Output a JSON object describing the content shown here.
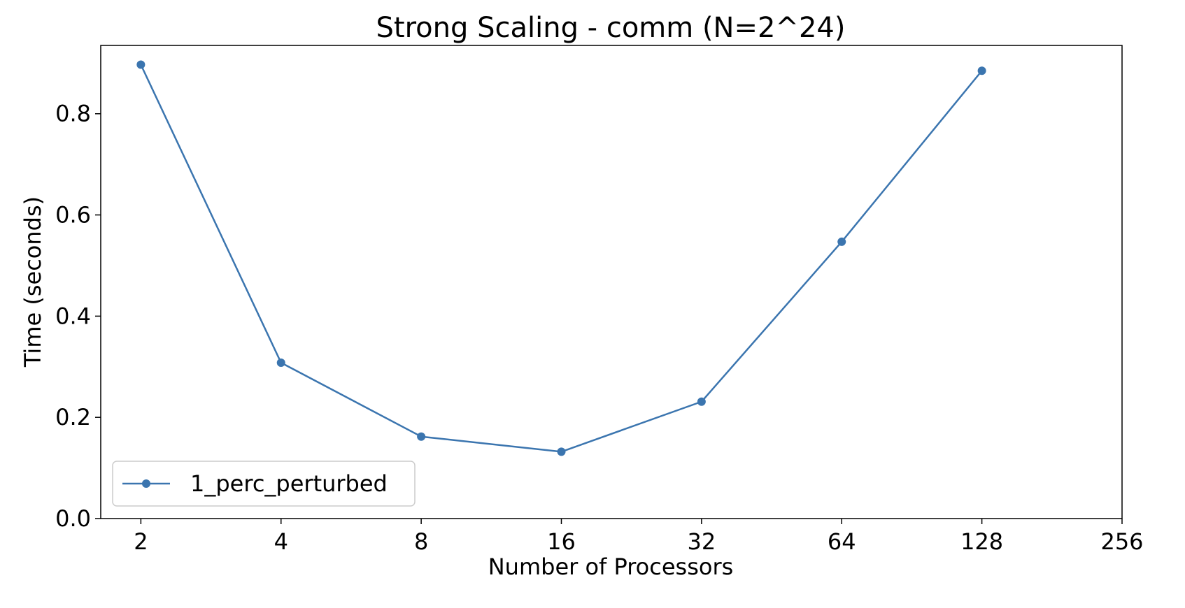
{
  "chart_data": {
    "type": "line",
    "title": "Strong Scaling - comm (N=2^24)",
    "xlabel": "Number of Processors",
    "ylabel": "Time (seconds)",
    "x_scale": "log2",
    "x_ticks": [
      2,
      4,
      8,
      16,
      32,
      64,
      128,
      256
    ],
    "x_tick_labels": [
      "2",
      "4",
      "8",
      "16",
      "32",
      "64",
      "128",
      "256"
    ],
    "xlim": [
      1.64,
      256
    ],
    "y_ticks": [
      0.0,
      0.2,
      0.4,
      0.6,
      0.8
    ],
    "y_tick_labels": [
      "0.0",
      "0.2",
      "0.4",
      "0.6",
      "0.8"
    ],
    "ylim": [
      0.0,
      0.935
    ],
    "grid": false,
    "legend_position": "lower-left",
    "series": [
      {
        "name": "1_perc_perturbed",
        "color": "#3b75af",
        "marker": "circle",
        "x": [
          2,
          4,
          8,
          16,
          32,
          64,
          128
        ],
        "y": [
          0.897,
          0.308,
          0.162,
          0.132,
          0.231,
          0.547,
          0.885
        ]
      }
    ]
  }
}
